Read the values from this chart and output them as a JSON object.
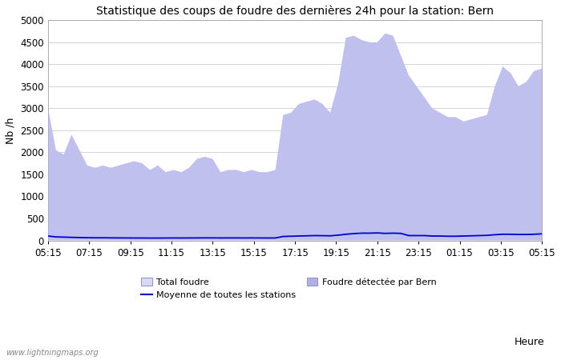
{
  "title": "Statistique des coups de foudre des dernières 24h pour la station: Bern",
  "xlabel": "Heure",
  "ylabel": "Nb /h",
  "xlim_labels": [
    "05:15",
    "07:15",
    "09:15",
    "11:15",
    "13:15",
    "15:15",
    "17:15",
    "19:15",
    "21:15",
    "23:15",
    "01:15",
    "03:15",
    "05:15"
  ],
  "ylim": [
    0,
    5000
  ],
  "yticks": [
    0,
    500,
    1000,
    1500,
    2000,
    2500,
    3000,
    3500,
    4000,
    4500,
    5000
  ],
  "background_color": "#ffffff",
  "plot_bg_color": "#ffffff",
  "watermark": "www.lightningmaps.org",
  "legend_labels": [
    "Total foudre",
    "Moyenne de toutes les stations",
    "Foudre détectée par Bern"
  ],
  "total_foudre_color": "#ccccff",
  "foudre_bern_color": "#aaaadd",
  "moyenne_color": "#0000cc",
  "total_foudre": [
    3000,
    2050,
    1950,
    2400,
    2050,
    1700,
    1650,
    1700,
    1650,
    1700,
    1750,
    1800,
    1750,
    1600,
    1700,
    1550,
    1600,
    1550,
    1650,
    1850,
    1900,
    1850,
    1550,
    1600,
    1600,
    1550,
    1600,
    1550,
    1550,
    1600,
    2850,
    2900,
    3100,
    3150,
    3200,
    3100,
    2900,
    3550,
    4600,
    4650,
    4550,
    4500,
    4500,
    4700,
    4650,
    4200,
    3750,
    3500,
    3250,
    3000,
    2900,
    2800,
    2800,
    2700,
    2750,
    2800,
    2850,
    3500,
    3950,
    3800,
    3500,
    3600,
    3850,
    3900
  ],
  "foudre_bern": [
    3000,
    2050,
    1950,
    2400,
    2050,
    1700,
    1650,
    1700,
    1650,
    1700,
    1750,
    1800,
    1750,
    1600,
    1700,
    1550,
    1600,
    1550,
    1650,
    1850,
    1900,
    1850,
    1550,
    1600,
    1600,
    1550,
    1600,
    1550,
    1550,
    1600,
    2850,
    2900,
    3100,
    3150,
    3200,
    3100,
    2900,
    3550,
    4600,
    4650,
    4550,
    4500,
    4500,
    4700,
    4650,
    4200,
    3750,
    3500,
    3250,
    3000,
    2900,
    2800,
    2800,
    2700,
    2750,
    2800,
    2850,
    3500,
    3950,
    3800,
    3500,
    3600,
    3850,
    3900
  ],
  "moyenne": [
    100,
    80,
    75,
    70,
    65,
    62,
    60,
    60,
    58,
    57,
    56,
    55,
    55,
    54,
    54,
    55,
    56,
    55,
    56,
    57,
    58,
    58,
    56,
    57,
    57,
    56,
    57,
    56,
    55,
    56,
    90,
    95,
    100,
    105,
    110,
    108,
    105,
    120,
    140,
    155,
    165,
    165,
    170,
    160,
    165,
    160,
    110,
    110,
    110,
    100,
    100,
    95,
    95,
    100,
    105,
    110,
    115,
    130,
    140,
    140,
    135,
    135,
    140,
    150
  ],
  "title_fontsize": 10,
  "axis_fontsize": 9,
  "tick_fontsize": 8.5
}
